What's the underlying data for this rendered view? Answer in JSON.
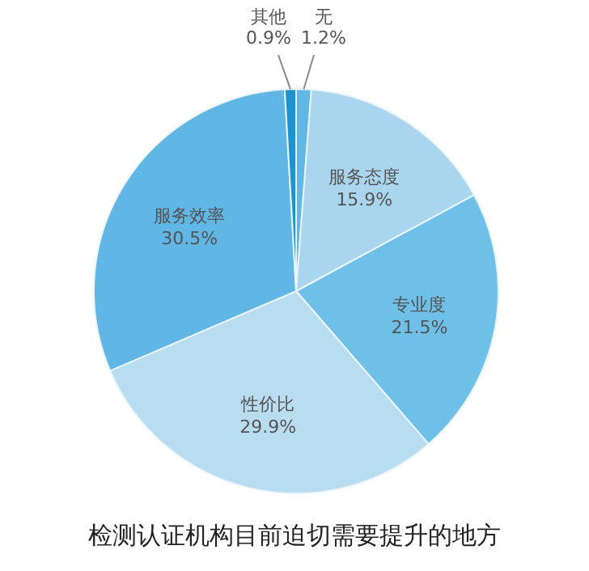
{
  "chart_data": {
    "type": "pie",
    "title": "检测认证机构目前迫切需要提升的地方",
    "categories": [
      "无",
      "服务态度",
      "专业度",
      "性价比",
      "服务效率",
      "其他"
    ],
    "values": [
      1.2,
      15.9,
      21.5,
      29.9,
      30.5,
      0.9
    ],
    "colors": [
      "#62b8e4",
      "#a9d6ee",
      "#6ec0e8",
      "#b9ddf0",
      "#60b6e4",
      "#1f93d0"
    ],
    "value_labels": [
      "1.2%",
      "15.9%",
      "21.5%",
      "29.9%",
      "30.5%",
      "0.9%"
    ]
  }
}
